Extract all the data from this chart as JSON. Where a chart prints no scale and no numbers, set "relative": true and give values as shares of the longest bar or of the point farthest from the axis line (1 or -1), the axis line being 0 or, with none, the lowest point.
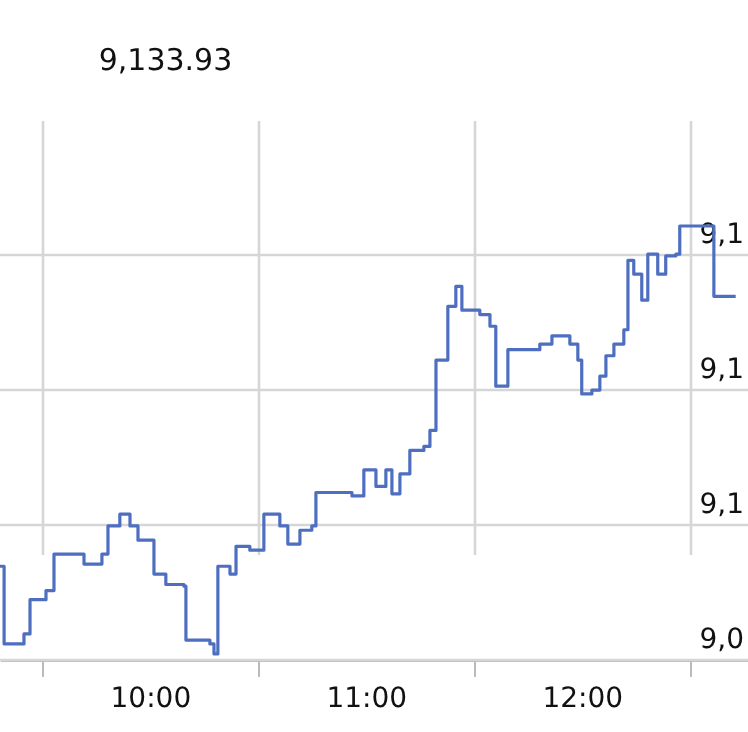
{
  "chart_data": {
    "type": "step",
    "title": "9,133.93",
    "relative": true,
    "x": [
      9.306,
      9.325,
      9.417,
      9.445,
      9.519,
      9.556,
      9.695,
      9.778,
      9.806,
      9.861,
      9.908,
      9.945,
      10.019,
      10.074,
      10.158,
      10.167,
      10.278,
      10.297,
      10.315,
      10.371,
      10.399,
      10.463,
      10.528,
      10.602,
      10.639,
      10.695,
      10.75,
      10.769,
      10.88,
      10.936,
      10.991,
      11.047,
      11.093,
      11.121,
      11.158,
      11.204,
      11.269,
      11.297,
      11.325,
      11.362,
      11.38,
      11.417,
      11.445,
      11.528,
      11.575,
      11.602,
      11.649,
      11.658,
      11.806,
      11.862,
      11.945,
      11.982,
      12.0,
      12.047,
      12.084,
      12.112,
      12.149,
      12.195,
      12.214,
      12.241,
      12.278,
      12.306,
      12.352,
      12.389,
      12.436,
      12.454,
      12.602,
      12.612,
      12.713
    ],
    "series": [
      {
        "color": "#4e6fc0",
        "values": [
          0.216,
          0.037,
          0.06,
          0.139,
          0.16,
          0.244,
          0.221,
          0.244,
          0.309,
          0.336,
          0.309,
          0.276,
          0.198,
          0.174,
          0.17,
          0.046,
          0.037,
          0.014,
          0.216,
          0.198,
          0.262,
          0.253,
          0.336,
          0.309,
          0.267,
          0.299,
          0.309,
          0.386,
          0.386,
          0.378,
          0.438,
          0.4,
          0.438,
          0.383,
          0.429,
          0.483,
          0.492,
          0.529,
          0.691,
          0.691,
          0.815,
          0.861,
          0.806,
          0.796,
          0.769,
          0.631,
          0.631,
          0.715,
          0.728,
          0.747,
          0.728,
          0.691,
          0.613,
          0.622,
          0.654,
          0.701,
          0.728,
          0.761,
          0.921,
          0.889,
          0.829,
          0.935,
          0.889,
          0.931,
          0.935,
          1,
          1,
          0.838,
          0.838
        ]
      }
    ],
    "xlim": [
      9.306,
      12.77
    ],
    "xticks": [
      {
        "value": 9.5,
        "label": null
      },
      {
        "value": 10,
        "label": "10:00"
      },
      {
        "value": 10.5,
        "label": null
      },
      {
        "value": 11,
        "label": "11:00"
      },
      {
        "value": 11.5,
        "label": null
      },
      {
        "value": 12,
        "label": "12:00"
      },
      {
        "value": 12.5,
        "label": null
      }
    ],
    "annotations": [
      "9,1",
      "9,1",
      "9,1",
      "9,0"
    ],
    "grid": true
  }
}
